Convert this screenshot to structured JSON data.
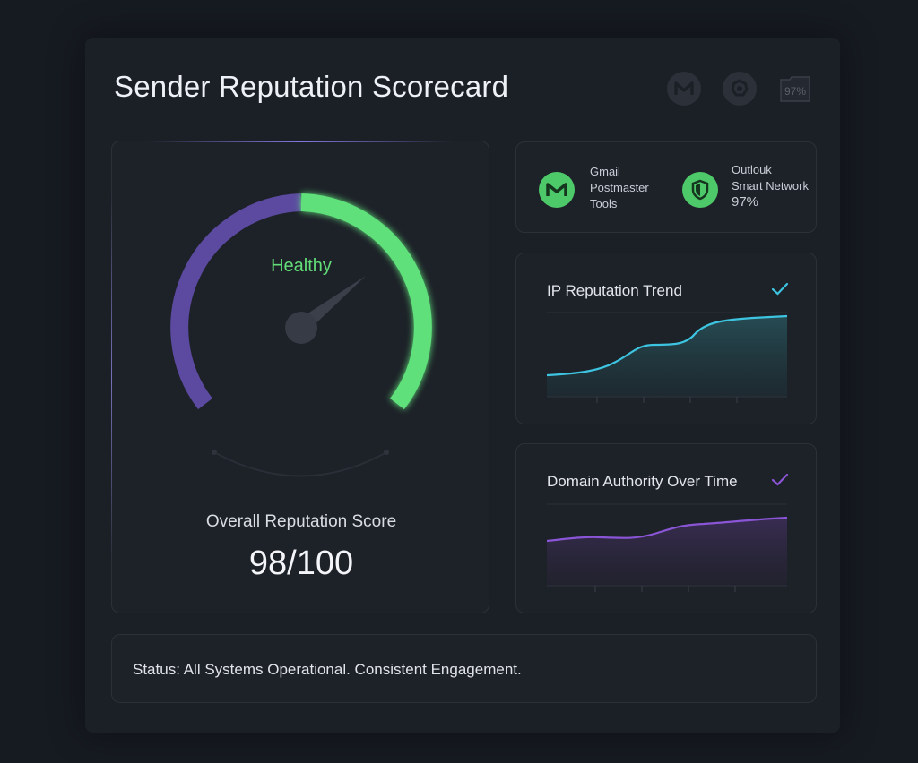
{
  "app": {
    "title": "Sender Reputation Scorecard",
    "header_icons": [
      "gmail-icon",
      "settings-icon",
      "percent-badge-icon"
    ],
    "header_badge_text": "97%"
  },
  "gauge": {
    "status_label": "Healthy",
    "score_label": "Overall Reputation Score",
    "score_text": "98/100",
    "score": 98,
    "max": 100,
    "colors": {
      "healthy": "#5ee07a",
      "track": "#5b4aa0",
      "needle": "#3a3f4a"
    }
  },
  "providers": [
    {
      "icon": "gmail-icon",
      "lines": [
        "Gmail",
        "Postmaster",
        "Tools"
      ]
    },
    {
      "icon": "shield-icon",
      "lines": [
        "Outlouk",
        "Smart Network",
        "97%"
      ]
    }
  ],
  "charts": [
    {
      "title": "IP Reputation Trend",
      "icon": "check-icon",
      "accent": "#3cc4e0"
    },
    {
      "title": "Domain Authority Over Time",
      "icon": "check-icon",
      "accent": "#8a55d6"
    }
  ],
  "status": {
    "text": "Status: All Systems Operational. Consistent Engagement."
  }
}
